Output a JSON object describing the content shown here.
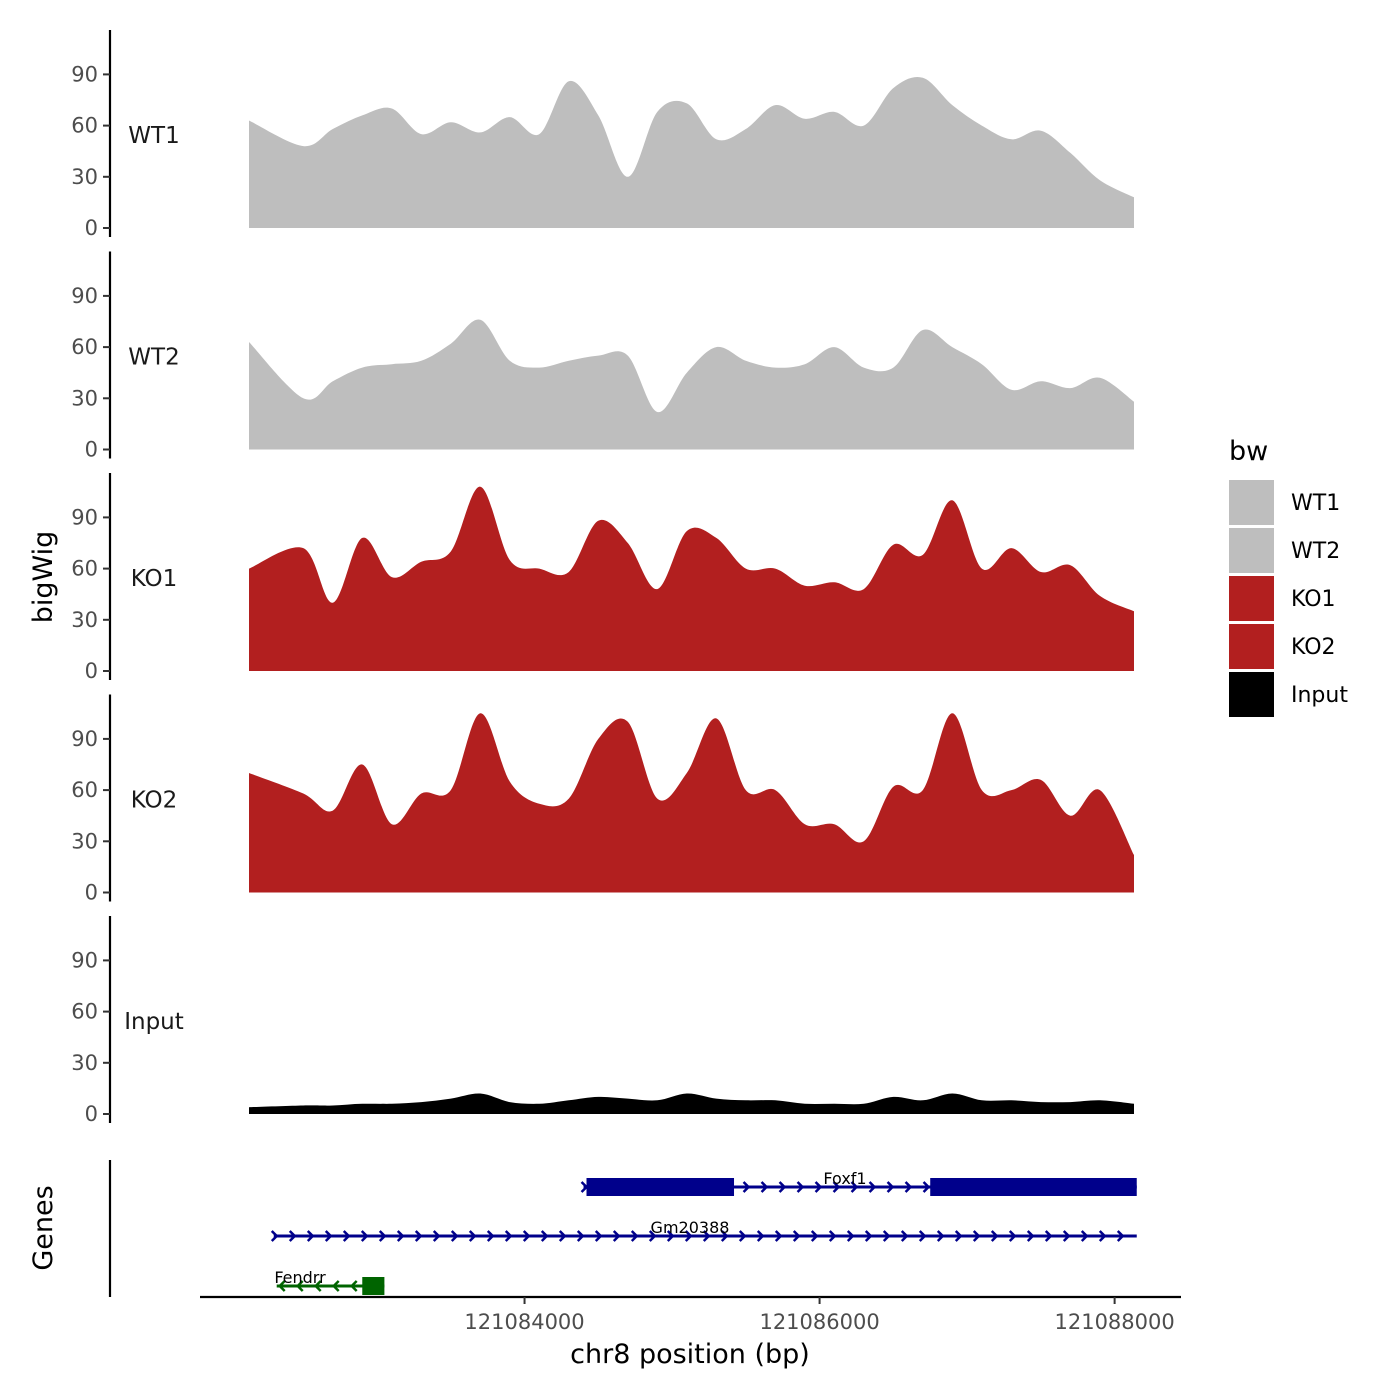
{
  "chart_data": {
    "type": "area",
    "title": "",
    "ylabel": "bigWig",
    "genes_label": "Genes",
    "xlabel": "chr8 position (bp)",
    "xlim": [
      121081800,
      121088450
    ],
    "x_ticks": [
      121084000,
      121086000,
      121088000
    ],
    "x_tick_labels": [
      "121084000",
      "121086000",
      "121088000"
    ],
    "ylim": [
      0,
      115
    ],
    "y_ticks": [
      0,
      30,
      60,
      90
    ],
    "y_tick_labels": [
      "0",
      "30",
      "60",
      "90"
    ],
    "x": [
      121082300,
      121082500,
      121082700,
      121082900,
      121083100,
      121083300,
      121083500,
      121083700,
      121083900,
      121084100,
      121084300,
      121084500,
      121084700,
      121084900,
      121085100,
      121085300,
      121085500,
      121085700,
      121085900,
      121086100,
      121086300,
      121086500,
      121086700,
      121086900,
      121087100,
      121087300,
      121087500,
      121087700,
      121087900,
      121088100
    ],
    "series": [
      {
        "name": "WT1",
        "color": "#bebebe",
        "values": [
          63,
          48,
          58,
          66,
          70,
          55,
          62,
          56,
          65,
          55,
          86,
          66,
          30,
          68,
          73,
          52,
          58,
          72,
          64,
          68,
          60,
          82,
          88,
          72,
          60,
          52,
          57,
          44,
          28,
          18
        ]
      },
      {
        "name": "WT2",
        "color": "#bebebe",
        "values": [
          63,
          30,
          40,
          48,
          50,
          52,
          62,
          76,
          52,
          48,
          52,
          55,
          55,
          22,
          45,
          60,
          52,
          48,
          50,
          60,
          48,
          48,
          70,
          60,
          50,
          35,
          40,
          36,
          42,
          28
        ]
      },
      {
        "name": "KO1",
        "color": "#b21f1f",
        "values": [
          60,
          72,
          40,
          78,
          55,
          64,
          70,
          108,
          65,
          60,
          58,
          88,
          75,
          48,
          82,
          78,
          60,
          60,
          50,
          52,
          48,
          74,
          68,
          100,
          60,
          72,
          58,
          62,
          44,
          35
        ]
      },
      {
        "name": "KO2",
        "color": "#b21f1f",
        "values": [
          70,
          58,
          48,
          75,
          40,
          58,
          60,
          105,
          65,
          52,
          55,
          90,
          100,
          55,
          70,
          102,
          60,
          60,
          40,
          40,
          30,
          62,
          60,
          105,
          60,
          60,
          66,
          45,
          60,
          22
        ]
      },
      {
        "name": "Input",
        "color": "#000000",
        "values": [
          4,
          5,
          5,
          6,
          6,
          7,
          9,
          12,
          7,
          6,
          8,
          10,
          9,
          8,
          12,
          9,
          8,
          8,
          6,
          6,
          6,
          10,
          8,
          12,
          8,
          8,
          7,
          7,
          8,
          6
        ]
      }
    ],
    "legend": {
      "title": "bw",
      "position": "right",
      "entries": [
        {
          "label": "WT1",
          "color": "#bebebe"
        },
        {
          "label": "WT2",
          "color": "#bebebe"
        },
        {
          "label": "KO1",
          "color": "#b21f1f"
        },
        {
          "label": "KO2",
          "color": "#b21f1f"
        },
        {
          "label": "Input",
          "color": "#000000"
        }
      ]
    },
    "genes": [
      {
        "name": "Foxf1",
        "strand": "+",
        "color": "#00008b",
        "start": 121084400,
        "end": 121088150,
        "exons": [
          [
            121084420,
            121085420
          ],
          [
            121086750,
            121088150
          ]
        ]
      },
      {
        "name": "Gm20388",
        "strand": "+",
        "color": "#00008b",
        "start": 121082300,
        "end": 121088150,
        "exons": []
      },
      {
        "name": "Fendrr",
        "strand": "-",
        "color": "#006400",
        "start": 121082320,
        "end": 121083050,
        "exons": [
          [
            121082900,
            121083050
          ]
        ]
      }
    ]
  }
}
